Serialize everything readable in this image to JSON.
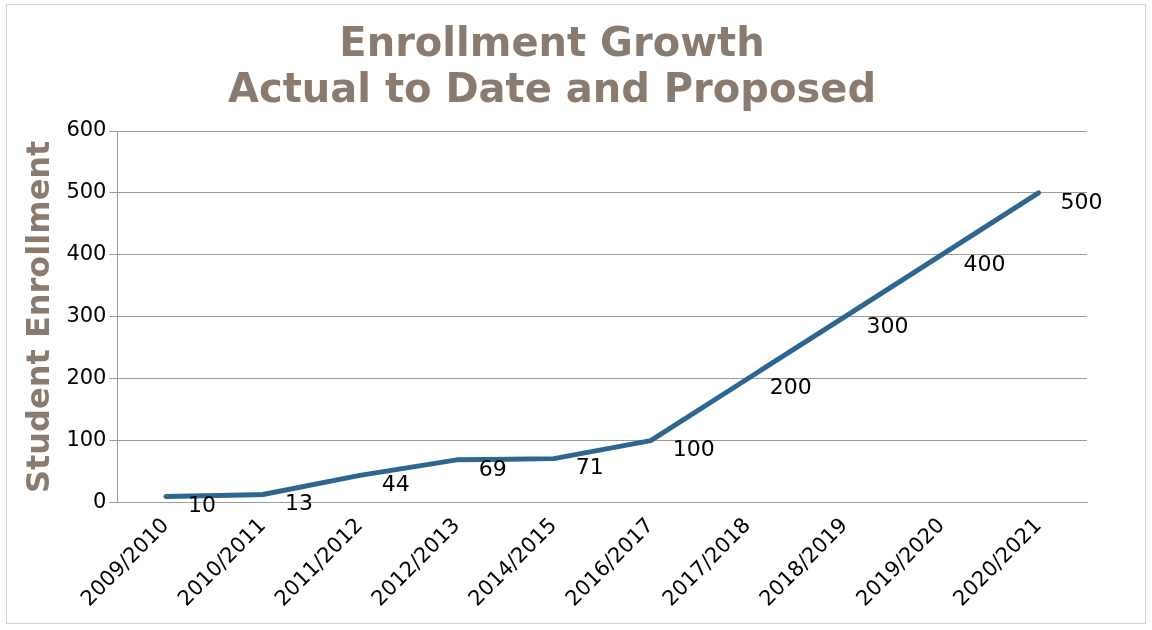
{
  "chart_data": {
    "type": "line",
    "title": "Enrollment Growth\nActual to Date and Proposed",
    "ylabel": "Student Enrollment",
    "categories": [
      "2009/2010",
      "2010/2011",
      "2011/2012",
      "2012/2013",
      "2014/2015",
      "2016/2017",
      "2017/2018",
      "2018/2019",
      "2019/2020",
      "2020/2021"
    ],
    "series": [
      {
        "color": "#2e6690",
        "values": [
          10,
          13,
          44,
          69,
          71,
          100,
          200,
          300,
          400,
          500
        ]
      }
    ],
    "ylim": [
      0,
      600
    ],
    "yticks": [
      0,
      100,
      200,
      300,
      400,
      500,
      600
    ],
    "grid": "y",
    "legend": false,
    "marker": "none",
    "line_style": "solid",
    "data_labels": true
  }
}
